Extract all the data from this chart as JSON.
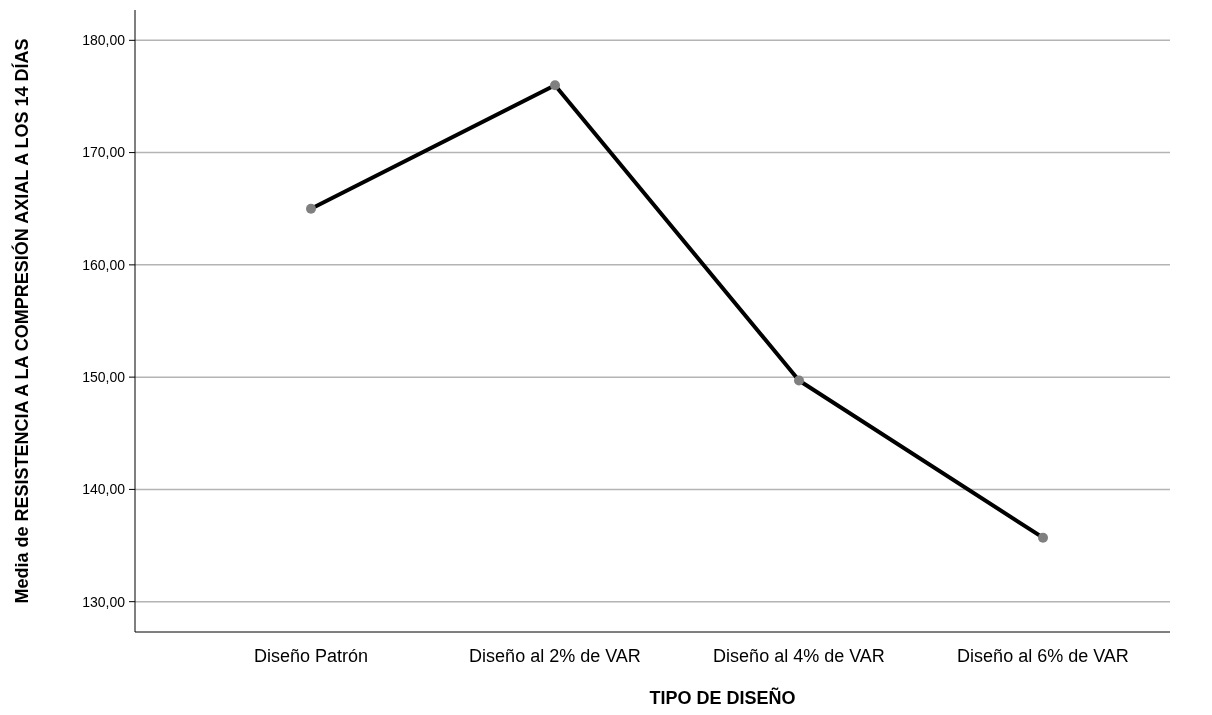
{
  "chart_data": {
    "type": "line",
    "xlabel": "TIPO DE DISEÑO",
    "ylabel": "Media de RESISTENCIA A LA COMPRESIÓN AXIAL A LOS 14 DÍAS",
    "categories": [
      "Diseño Patrón",
      "Diseño al 2% de VAR",
      "Diseño al 4% de VAR",
      "Diseño al 6% de VAR"
    ],
    "series": [
      {
        "color": "#000000",
        "values": [
          165.0,
          176.0,
          149.7,
          135.7
        ]
      }
    ],
    "ylim": [
      127.3,
      182.7
    ],
    "yticks": [
      {
        "value": 130,
        "label": "130,00"
      },
      {
        "value": 140,
        "label": "140,00"
      },
      {
        "value": 150,
        "label": "150,00"
      },
      {
        "value": 160,
        "label": "160,00"
      },
      {
        "value": 170,
        "label": "170,00"
      },
      {
        "value": 180,
        "label": "180,00"
      }
    ],
    "grid": "y",
    "marker": "circle",
    "line_style": "solid"
  }
}
